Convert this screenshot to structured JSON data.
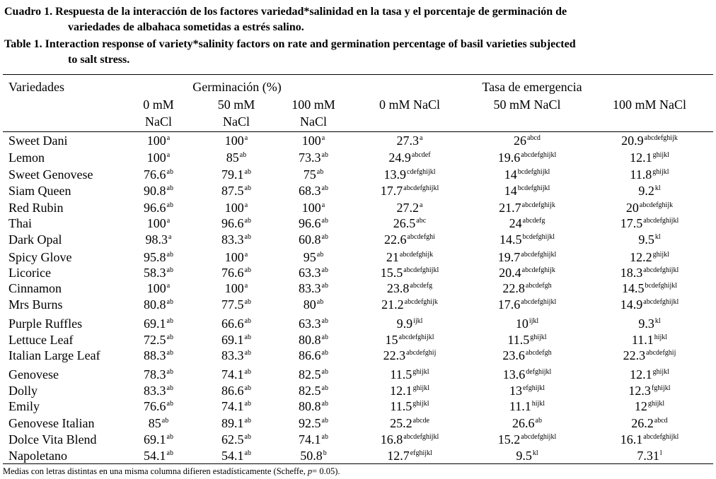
{
  "caption_es": {
    "lead": "Cuadro 1.",
    "line1": "Respuesta de la interacción de los factores variedad*salinidad en la tasa y el porcentaje de germinación de",
    "line2": "variedades de albahaca sometidas a estrés salino."
  },
  "caption_en": {
    "lead": "Table 1.",
    "line1": "Interaction response of variety*salinity factors on rate and germination percentage of basil varieties subjected",
    "line2": "to salt stress."
  },
  "header": {
    "variedades": "Variedades",
    "germinacion": "Germinación (%)",
    "tasa": "Tasa de emergencia",
    "g0_top": "0 mM",
    "g0_bottom": "NaCl",
    "g50_top": "50 mM",
    "g50_bottom": "NaCl",
    "g100_top": "100 mM",
    "g100_bottom": "NaCl",
    "t0": "0 mM NaCl",
    "t50": "50 mM NaCl",
    "t100": "100 mM NaCl"
  },
  "rows": [
    {
      "name": "Sweet Dani",
      "v": [
        [
          "100",
          "a"
        ],
        [
          "100",
          "a"
        ],
        [
          "100",
          "a"
        ],
        [
          "27.3",
          "a"
        ],
        [
          "26",
          "abcd"
        ],
        [
          "20.9",
          "abcdefghijk"
        ]
      ]
    },
    {
      "name": "Lemon",
      "v": [
        [
          "100",
          "a"
        ],
        [
          "85",
          "ab"
        ],
        [
          "73.3",
          "ab"
        ],
        [
          "24.9",
          "abcdef"
        ],
        [
          "19.6",
          "abcdefghijkl"
        ],
        [
          "12.1",
          "ghijkl"
        ]
      ]
    },
    {
      "name": "Sweet Genovese",
      "v": [
        [
          "76.6",
          "ab"
        ],
        [
          "79.1",
          "ab"
        ],
        [
          "75",
          "ab"
        ],
        [
          "13.9",
          "cdefghijkl"
        ],
        [
          "14",
          "bcdefghijkl"
        ],
        [
          "11.8",
          "ghijkl"
        ]
      ]
    },
    {
      "name": "Siam Queen",
      "v": [
        [
          "90.8",
          "ab"
        ],
        [
          "87.5",
          "ab"
        ],
        [
          "68.3",
          "ab"
        ],
        [
          "17.7",
          "abcdefghijkl"
        ],
        [
          "14",
          "bcdefghijkl"
        ],
        [
          "9.2",
          "kl"
        ]
      ]
    },
    {
      "name": "Red Rubin",
      "v": [
        [
          "96.6",
          "ab"
        ],
        [
          "100",
          "a"
        ],
        [
          "100",
          "a"
        ],
        [
          "27.2",
          "a"
        ],
        [
          "21.7",
          "abcdefghijk"
        ],
        [
          "20",
          "abcdefghijk"
        ]
      ]
    },
    {
      "name": "Thai",
      "v": [
        [
          "100",
          "a"
        ],
        [
          "96.6",
          "ab"
        ],
        [
          "96.6",
          "ab"
        ],
        [
          "26.5",
          "abc"
        ],
        [
          "24",
          "abcdefg"
        ],
        [
          "17.5",
          "abcdefghijkl"
        ]
      ]
    },
    {
      "name": "Dark Opal",
      "v": [
        [
          "98.3",
          "a"
        ],
        [
          "83.3",
          "ab"
        ],
        [
          "60.8",
          "ab"
        ],
        [
          "22.6",
          "abcdefghi"
        ],
        [
          "14.5",
          "bcdefghijkl"
        ],
        [
          "9.5",
          "kl"
        ]
      ]
    },
    {
      "name": "Spicy Glove",
      "v": [
        [
          "95.8",
          "ab"
        ],
        [
          "100",
          "a"
        ],
        [
          "95",
          "ab"
        ],
        [
          "21",
          "abcdefghijk"
        ],
        [
          "19.7",
          "abcdefghijkl"
        ],
        [
          "12.2",
          "ghijkl"
        ]
      ]
    },
    {
      "name": "Licorice",
      "v": [
        [
          "58.3",
          "ab"
        ],
        [
          "76.6",
          "ab"
        ],
        [
          "63.3",
          "ab"
        ],
        [
          "15.5",
          "abcdefghijkl"
        ],
        [
          "20.4",
          "abcdefghijk"
        ],
        [
          "18.3",
          "abcdefghijkl"
        ]
      ]
    },
    {
      "name": "Cinnamon",
      "v": [
        [
          "100",
          "a"
        ],
        [
          "100",
          "a"
        ],
        [
          "83.3",
          "ab"
        ],
        [
          "23.8",
          "abcdefg"
        ],
        [
          "22.8",
          "abcdefgh"
        ],
        [
          "14.5",
          "bcdefghijkl"
        ]
      ]
    },
    {
      "name": "Mrs Burns",
      "v": [
        [
          "80.8",
          "ab"
        ],
        [
          "77.5",
          "ab"
        ],
        [
          "80",
          "ab"
        ],
        [
          "21.2",
          "abcdefghijk"
        ],
        [
          "17.6",
          "abcdefghijkl"
        ],
        [
          "14.9",
          "abcdefghijkl"
        ]
      ]
    },
    {
      "name": "Purple Ruffles",
      "v": [
        [
          "69.1",
          "ab"
        ],
        [
          "66.6",
          "ab"
        ],
        [
          "63.3",
          "ab"
        ],
        [
          "9.9",
          "ijkl"
        ],
        [
          "10",
          "ijkl"
        ],
        [
          "9.3",
          "kl"
        ]
      ]
    },
    {
      "name": "Lettuce Leaf",
      "v": [
        [
          "72.5",
          "ab"
        ],
        [
          "69.1",
          "ab"
        ],
        [
          "80.8",
          "ab"
        ],
        [
          "15",
          "abcdefghijkl"
        ],
        [
          "11.5",
          "ghijkl"
        ],
        [
          "11.1",
          "hijkl"
        ]
      ]
    },
    {
      "name": "Italian Large Leaf",
      "v": [
        [
          "88.3",
          "ab"
        ],
        [
          "83.3",
          "ab"
        ],
        [
          "86.6",
          "ab"
        ],
        [
          "22.3",
          "abcdefghij"
        ],
        [
          "23.6",
          "abcdefgh"
        ],
        [
          "22.3",
          "abcdefghij"
        ]
      ]
    },
    {
      "name": "Genovese",
      "v": [
        [
          "78.3",
          "ab"
        ],
        [
          "74.1",
          "ab"
        ],
        [
          "82.5",
          "ab"
        ],
        [
          "11.5",
          "ghijkl"
        ],
        [
          "13.6",
          "defghijkl"
        ],
        [
          "12.1",
          "ghijkl"
        ]
      ]
    },
    {
      "name": "Dolly",
      "v": [
        [
          "83.3",
          "ab"
        ],
        [
          "86.6",
          "ab"
        ],
        [
          "82.5",
          "ab"
        ],
        [
          "12.1",
          "ghijkl"
        ],
        [
          "13",
          "efghijkl"
        ],
        [
          "12.3",
          "fghijkl"
        ]
      ]
    },
    {
      "name": "Emily",
      "v": [
        [
          "76.6",
          "ab"
        ],
        [
          "74.1",
          "ab"
        ],
        [
          "80.8",
          "ab"
        ],
        [
          "11.5",
          "ghijkl"
        ],
        [
          "11.1",
          "hijkl"
        ],
        [
          "12",
          "ghijkl"
        ]
      ]
    },
    {
      "name": "Genovese Italian",
      "v": [
        [
          "85",
          "ab"
        ],
        [
          "89.1",
          "ab"
        ],
        [
          "92.5",
          "ab"
        ],
        [
          "25.2",
          "abcde"
        ],
        [
          "26.6",
          "ab"
        ],
        [
          "26.2",
          "abcd"
        ]
      ]
    },
    {
      "name": "Dolce Vita Blend",
      "v": [
        [
          "69.1",
          "ab"
        ],
        [
          "62.5",
          "ab"
        ],
        [
          "74.1",
          "ab"
        ],
        [
          "16.8",
          "abcdefghijkl"
        ],
        [
          "15.2",
          "abcdefghijkl"
        ],
        [
          "16.1",
          "abcdefghijkl"
        ]
      ]
    },
    {
      "name": "Napoletano",
      "v": [
        [
          "54.1",
          "ab"
        ],
        [
          "54.1",
          "ab"
        ],
        [
          "50.8",
          "b"
        ],
        [
          "12.7",
          "efghijkl"
        ],
        [
          "9.5",
          "kl"
        ],
        [
          "7.31",
          "l"
        ]
      ]
    }
  ],
  "footnote": {
    "pre": "Medias con letras distintas en una misma columna difieren estadísticamente (Scheffe, ",
    "p": "p",
    "post": "= 0.05)."
  }
}
